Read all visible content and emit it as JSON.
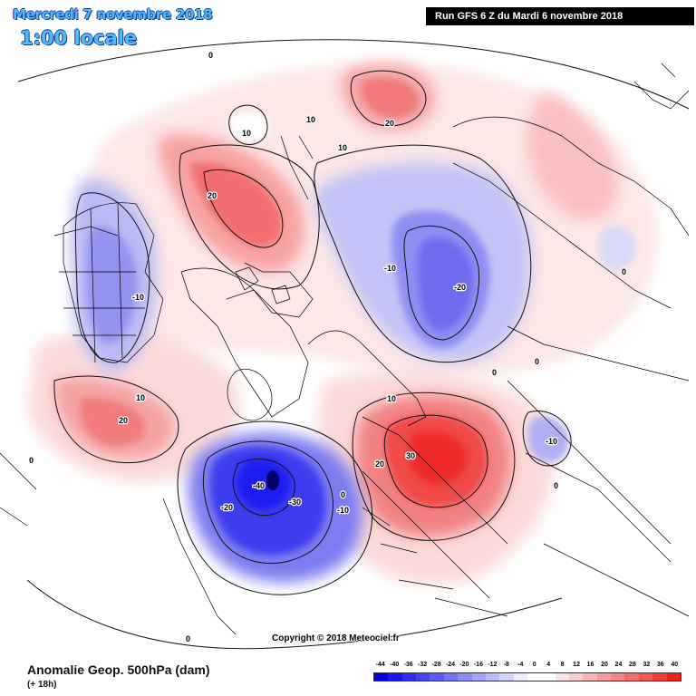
{
  "header": {
    "date_title": "Mercredi 7 novembre 2018",
    "time_title": "1:00 locale",
    "run_info": "Run GFS 6 Z du Mardi 6 novembre 2018"
  },
  "footer": {
    "copyright": "Copyright © 2018 Meteociel.fr",
    "title": "Anomalie Geop. 500hPa (dam)",
    "subtitle": "(+ 18h)"
  },
  "legend": {
    "labels": [
      "-44",
      "-40",
      "-36",
      "-32",
      "-28",
      "-24",
      "-20",
      "-16",
      "-12",
      "-8",
      "-4",
      "0",
      "4",
      "8",
      "12",
      "16",
      "20",
      "24",
      "28",
      "32",
      "36",
      "40"
    ],
    "colors": [
      "#0000e0",
      "#1616f0",
      "#2c2cf5",
      "#4444f5",
      "#5c5cf5",
      "#7474f5",
      "#8c8cf5",
      "#a4a4f7",
      "#bcbcf9",
      "#d4d4fb",
      "#ececfd",
      "#ffffff",
      "#ffffff",
      "#fde4e4",
      "#fbcccc",
      "#f9b4b4",
      "#f79c9c",
      "#f58484",
      "#f56c6c",
      "#f55454",
      "#f53c3c",
      "#f02020"
    ]
  },
  "contour_labels": {
    "c1": "0",
    "c2": "0",
    "c3": "10",
    "c4": "10",
    "c5": "20",
    "c6": "20",
    "c7": "-10",
    "c8": "-20",
    "c9": "-10",
    "c10": "10",
    "c11": "20",
    "c12": "10",
    "c13": "30",
    "c14": "20",
    "c15": "-40",
    "c16": "-30",
    "c17": "-20",
    "c18": "-10",
    "c19": "0",
    "c20": "-10",
    "c21": "0",
    "c22": "10",
    "c23": "0",
    "c24": "0",
    "c25": "0",
    "c26": "0"
  },
  "colors": {
    "title_blue": "#55b8ff",
    "positive_core": "#f02020",
    "negative_core": "#0000e0",
    "land_line": "#000000"
  }
}
